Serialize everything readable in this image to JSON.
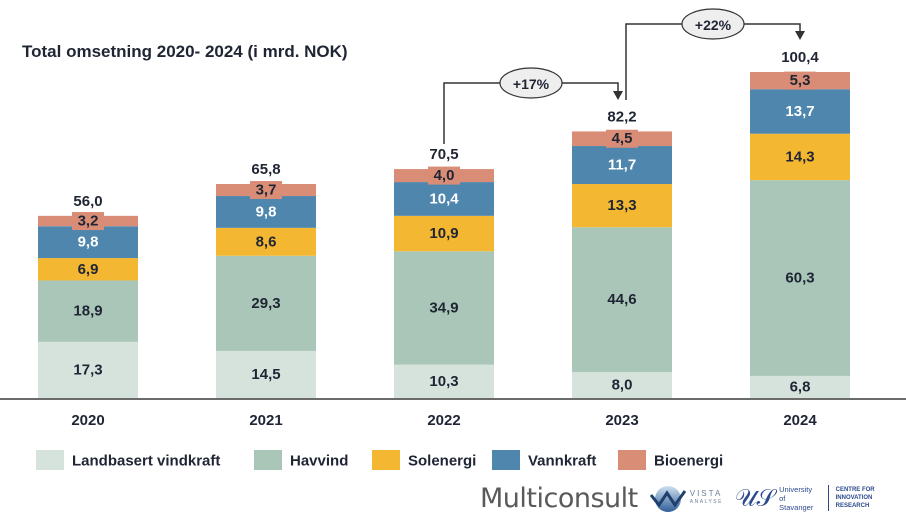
{
  "chart_data": {
    "type": "bar",
    "stacked": true,
    "title": "Total omsetning 2020- 2024 (i mrd. NOK)",
    "xlabel": "",
    "ylabel": "",
    "ylim": [
      0,
      100.4
    ],
    "grid": false,
    "legend_position": "bottom",
    "categories": [
      "2020",
      "2021",
      "2022",
      "2023",
      "2024"
    ],
    "series": [
      {
        "name": "Landbasert vindkraft",
        "color": "#d6e3dd",
        "label_color": "#1f2533",
        "values": [
          17.3,
          14.5,
          10.3,
          8.0,
          6.8
        ],
        "labels": [
          "17,3",
          "14,5",
          "10,3",
          "8,0",
          "6,8"
        ]
      },
      {
        "name": "Havvind",
        "color": "#a9c6b8",
        "label_color": "#1f2533",
        "values": [
          18.9,
          29.3,
          34.9,
          44.6,
          60.3
        ],
        "labels": [
          "18,9",
          "29,3",
          "34,9",
          "44,6",
          "60,3"
        ]
      },
      {
        "name": "Solenergi",
        "color": "#f4b731",
        "label_color": "#1f2533",
        "values": [
          6.9,
          8.6,
          10.9,
          13.3,
          14.3
        ],
        "labels": [
          "6,9",
          "8,6",
          "10,9",
          "13,3",
          "14,3"
        ]
      },
      {
        "name": "Vannkraft",
        "color": "#4f86ad",
        "label_color": "#ffffff",
        "values": [
          9.8,
          9.8,
          10.4,
          11.7,
          13.7
        ],
        "labels": [
          "9,8",
          "9,8",
          "10,4",
          "11,7",
          "13,7"
        ]
      },
      {
        "name": "Bioenergi",
        "color": "#d98d76",
        "label_color": "#1f2533",
        "values": [
          3.2,
          3.7,
          4.0,
          4.5,
          5.3
        ],
        "labels": [
          "3,2",
          "3,7",
          "4,0",
          "4,5",
          "5,3"
        ]
      }
    ],
    "totals": [
      56.0,
      65.8,
      70.5,
      82.2,
      100.4
    ],
    "total_labels": [
      "56,0",
      "65,8",
      "70,5",
      "82,2",
      "100,4"
    ],
    "annotations": [
      {
        "text": "+17%",
        "from": "2022",
        "to": "2023"
      },
      {
        "text": "+22%",
        "from": "2023",
        "to": "2024"
      }
    ]
  },
  "logos": {
    "multiconsult": "Multiconsult",
    "vista": "VISTA",
    "vista_sub": "ANALYSE",
    "uis_line1": "University",
    "uis_line2": "of Stavanger",
    "cir_line1": "CENTRE FOR",
    "cir_line2": "INNOVATION RESEARCH"
  }
}
